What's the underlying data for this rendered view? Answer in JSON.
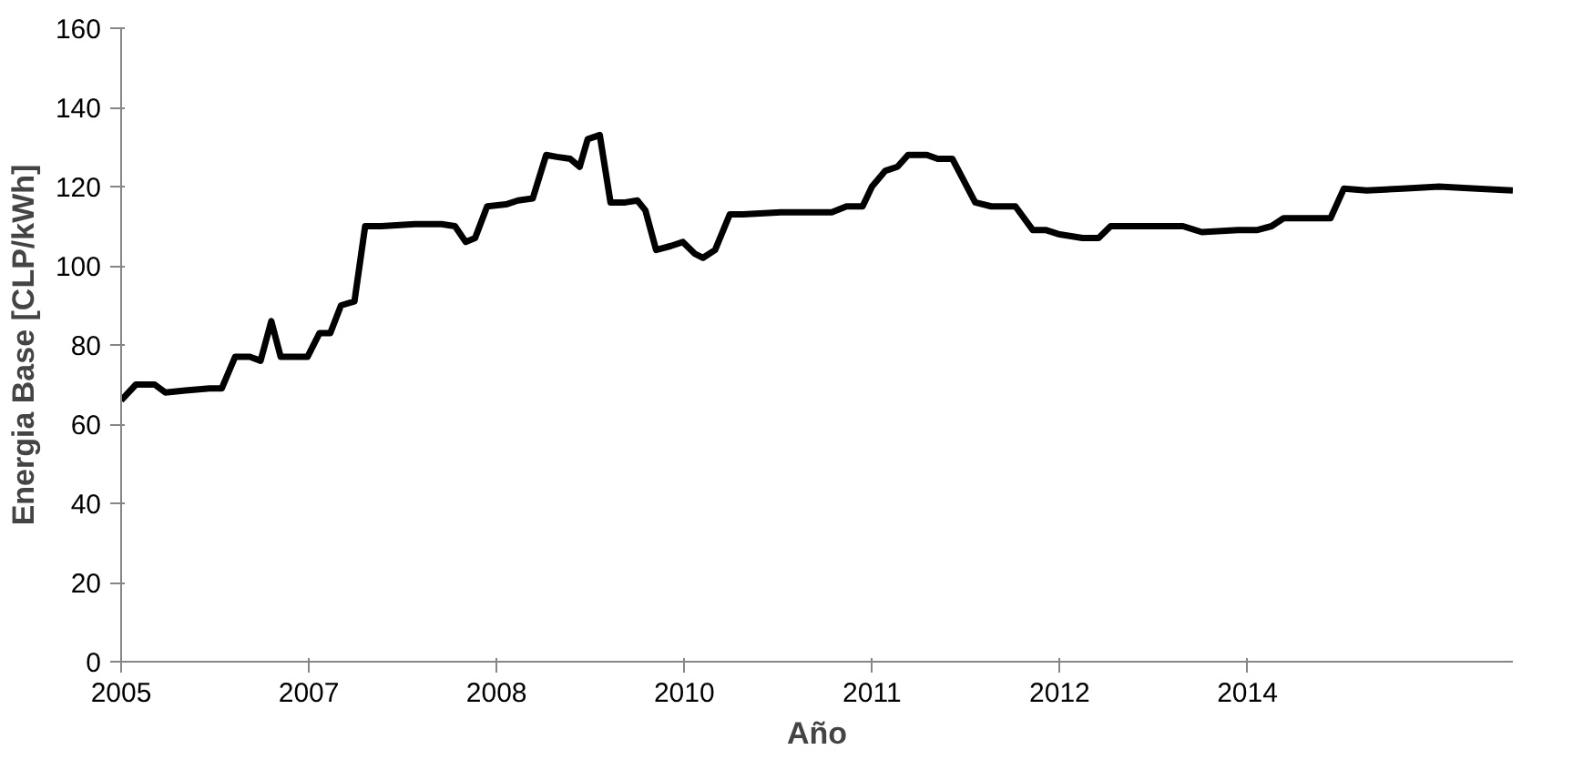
{
  "chart_data": {
    "type": "line",
    "xlabel": "Año",
    "ylabel": "Energia Base [CLP/kWh]",
    "xlim": [
      2005.4,
      2015.78
    ],
    "ylim": [
      0,
      160
    ],
    "xticks": [
      {
        "value": 2005.4,
        "label": "2005"
      },
      {
        "value": 2006.8,
        "label": "2007"
      },
      {
        "value": 2008.2,
        "label": "2008"
      },
      {
        "value": 2009.6,
        "label": "2010"
      },
      {
        "value": 2011.0,
        "label": "2011"
      },
      {
        "value": 2012.4,
        "label": "2012"
      },
      {
        "value": 2013.8,
        "label": "2014"
      }
    ],
    "yticks": [
      0,
      20,
      40,
      60,
      80,
      100,
      120,
      140,
      160
    ],
    "grid": false,
    "marker": "none",
    "line_style": "solid",
    "series": [
      {
        "color": "#000000",
        "x": [
          2005.4,
          2005.51,
          2005.65,
          2005.73,
          2005.88,
          2006.06,
          2006.15,
          2006.25,
          2006.36,
          2006.44,
          2006.52,
          2006.59,
          2006.7,
          2006.79,
          2006.88,
          2006.96,
          2007.04,
          2007.14,
          2007.22,
          2007.34,
          2007.59,
          2007.79,
          2007.89,
          2007.97,
          2008.04,
          2008.13,
          2008.27,
          2008.36,
          2008.47,
          2008.57,
          2008.65,
          2008.75,
          2008.82,
          2008.88,
          2008.97,
          2009.05,
          2009.16,
          2009.25,
          2009.31,
          2009.39,
          2009.5,
          2009.59,
          2009.68,
          2009.74,
          2009.83,
          2009.94,
          2010.04,
          2010.32,
          2010.7,
          2010.81,
          2010.93,
          2011.0,
          2011.1,
          2011.19,
          2011.27,
          2011.41,
          2011.49,
          2011.6,
          2011.77,
          2011.89,
          2012.07,
          2012.2,
          2012.3,
          2012.39,
          2012.57,
          2012.69,
          2012.78,
          2013.05,
          2013.32,
          2013.46,
          2013.73,
          2013.87,
          2013.98,
          2014.07,
          2014.28,
          2014.42,
          2014.52,
          2014.69,
          2014.96,
          2015.23,
          2015.51,
          2015.78
        ],
        "values": [
          66,
          70,
          70,
          68,
          68.5,
          69,
          69,
          77,
          77,
          76,
          86,
          77,
          77,
          77,
          83,
          83,
          90,
          91,
          110,
          110,
          110.5,
          110.5,
          110,
          106,
          107,
          115,
          115.5,
          116.5,
          117,
          128,
          127.5,
          127,
          125,
          132,
          133,
          116,
          116,
          116.5,
          114,
          104,
          105,
          106,
          103,
          102,
          104,
          113,
          113,
          113.5,
          113.5,
          115,
          115,
          120,
          124,
          125,
          128,
          128,
          127,
          127,
          116,
          115,
          115,
          109,
          109,
          108,
          107,
          107,
          110,
          110,
          110,
          108.5,
          109,
          109,
          110,
          112,
          112,
          112,
          119.5,
          119,
          119.5,
          120,
          119.5,
          119
        ]
      }
    ]
  }
}
